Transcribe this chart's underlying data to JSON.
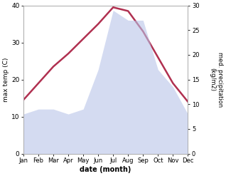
{
  "months": [
    "Jan",
    "Feb",
    "Mar",
    "Apr",
    "May",
    "Jun",
    "Jul",
    "Aug",
    "Sep",
    "Oct",
    "Nov",
    "Dec"
  ],
  "temp": [
    14.5,
    19,
    23.5,
    27,
    31,
    35,
    39.5,
    38.5,
    33,
    26,
    19,
    14
  ],
  "precip": [
    8,
    9,
    9,
    8,
    9,
    17,
    29,
    27,
    27,
    17,
    13.5,
    8
  ],
  "temp_color": "#b03050",
  "precip_fill_color": "#b8c4e8",
  "precip_fill_alpha": 0.6,
  "ylim_temp": [
    0,
    40
  ],
  "ylim_precip": [
    0,
    30
  ],
  "yticks_temp": [
    0,
    10,
    20,
    30,
    40
  ],
  "yticks_precip": [
    0,
    5,
    10,
    15,
    20,
    25,
    30
  ],
  "xlabel": "date (month)",
  "ylabel_left": "max temp (C)",
  "ylabel_right": "med. precipitation\n(kg/m2)",
  "bg_color": "#ffffff"
}
